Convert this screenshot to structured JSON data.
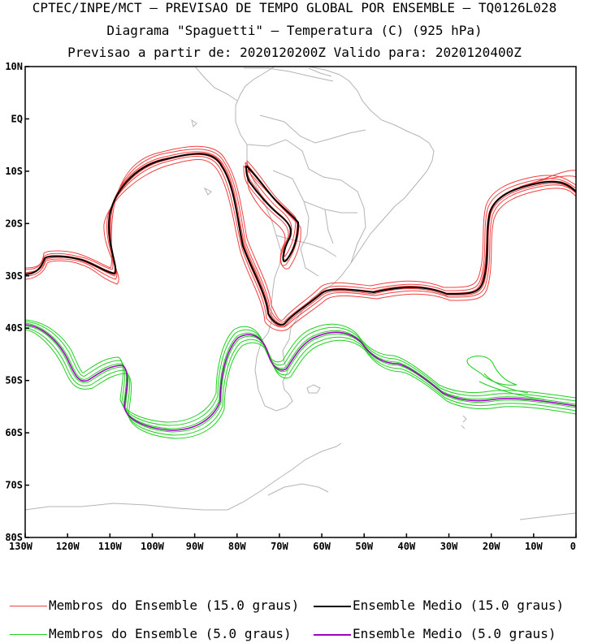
{
  "header": {
    "line1": "CPTEC/INPE/MCT – PREVISAO DE TEMPO GLOBAL POR ENSEMBLE – TQ0126L028",
    "line2": "Diagrama \"Spaguetti\" – Temperatura (C) (925 hPa)",
    "line3": "Previsao a partir de: 2020120200Z  Valido para: 2020120400Z"
  },
  "map": {
    "lon_range": [
      -130,
      0
    ],
    "lat_range": [
      -80,
      10
    ],
    "lat_ticks": [
      "10N",
      "EQ",
      "10S",
      "20S",
      "30S",
      "40S",
      "50S",
      "60S",
      "70S",
      "80S"
    ],
    "lon_ticks": [
      "130W",
      "120W",
      "110W",
      "100W",
      "90W",
      "80W",
      "70W",
      "60W",
      "50W",
      "40W",
      "30W",
      "20W",
      "10W",
      "0"
    ],
    "coast_color": "#b4b4b4"
  },
  "legend": {
    "items": [
      {
        "label": "Membros do Ensemble (15.0 graus)",
        "color": "#f04040"
      },
      {
        "label": "Ensemble Medio (15.0 graus)",
        "color": "#000000"
      },
      {
        "label": "Membros do Ensemble (5.0 graus)",
        "color": "#20d020"
      },
      {
        "label": "Ensemble Medio (5.0 graus)",
        "color": "#a000c0"
      }
    ]
  }
}
